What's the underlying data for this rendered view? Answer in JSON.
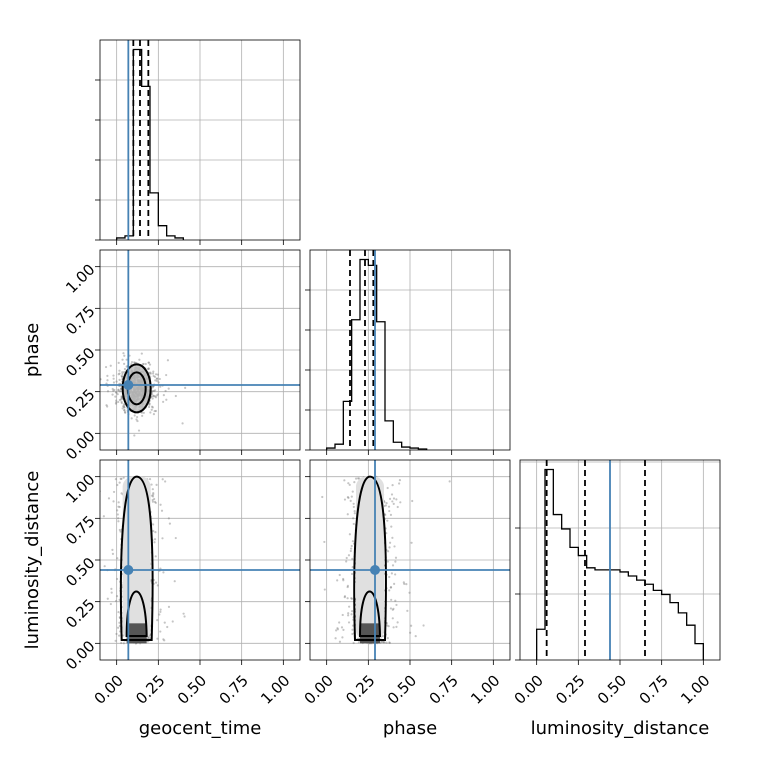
{
  "chart_data": {
    "type": "corner",
    "parameters": [
      "geocent_time",
      "phase",
      "luminosity_distance"
    ],
    "axis_labels": {
      "x": [
        "geocent_time",
        "phase",
        "luminosity_distance"
      ],
      "y": [
        "phase",
        "luminosity_distance"
      ]
    },
    "range": [
      -0.1,
      1.1
    ],
    "ticks": [
      "0.00",
      "0.25",
      "0.50",
      "0.75",
      "1.00"
    ],
    "grid": true,
    "colors": {
      "truth": "#4682b4",
      "hist": "#000000",
      "samples": "#7f7f7f"
    },
    "truths": {
      "geocent_time": 0.07,
      "phase": 0.29,
      "luminosity_distance": 0.44
    },
    "quantiles": {
      "geocent_time": [
        0.1,
        0.14,
        0.19
      ],
      "phase": [
        0.14,
        0.23,
        0.28
      ],
      "luminosity_distance": [
        0.06,
        0.29,
        0.65
      ]
    },
    "histograms": {
      "geocent_time": {
        "bin_edges": [
          0.0,
          0.05,
          0.1,
          0.15,
          0.2,
          0.25,
          0.3,
          0.35,
          0.4
        ],
        "counts": [
          0.01,
          0.02,
          0.93,
          0.75,
          0.23,
          0.07,
          0.02,
          0.01
        ]
      },
      "phase": {
        "bin_edges": [
          0.0,
          0.05,
          0.1,
          0.15,
          0.2,
          0.25,
          0.3,
          0.35,
          0.4,
          0.45,
          0.5,
          0.55,
          0.6
        ],
        "counts": [
          0.01,
          0.03,
          0.25,
          0.67,
          0.98,
          0.95,
          0.66,
          0.15,
          0.04,
          0.015,
          0.01,
          0.005
        ]
      },
      "luminosity_distance": {
        "bin_edges": [
          0.0,
          0.05,
          0.1,
          0.15,
          0.2,
          0.25,
          0.3,
          0.35,
          0.4,
          0.45,
          0.5,
          0.55,
          0.6,
          0.65,
          0.7,
          0.75,
          0.8,
          0.85,
          0.9,
          0.95,
          1.0
        ],
        "counts": [
          0.15,
          0.93,
          0.71,
          0.64,
          0.55,
          0.51,
          0.45,
          0.44,
          0.44,
          0.44,
          0.43,
          0.41,
          0.39,
          0.37,
          0.34,
          0.32,
          0.28,
          0.23,
          0.17,
          0.08
        ]
      }
    },
    "samples_2d": [
      {
        "x": "geocent_time",
        "y": "phase",
        "center": [
          0.12,
          0.27
        ],
        "spread": [
          0.05,
          0.07
        ]
      },
      {
        "x": "geocent_time",
        "y": "luminosity_distance",
        "center": [
          0.12,
          0.45
        ],
        "spread": [
          0.05,
          0.3
        ]
      },
      {
        "x": "phase",
        "y": "luminosity_distance",
        "center": [
          0.26,
          0.45
        ],
        "spread": [
          0.06,
          0.3
        ]
      }
    ]
  }
}
